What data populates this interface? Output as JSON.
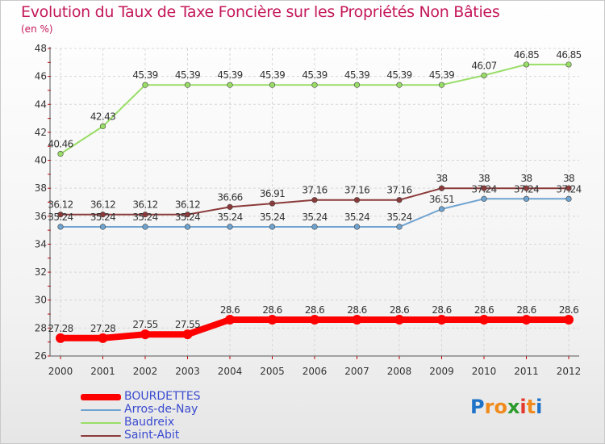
{
  "chart_data": {
    "type": "line",
    "title": "Evolution du Taux de Taxe Foncière sur les Propriétés Non Bâties",
    "unit_label": "(en %)",
    "x": [
      "2000",
      "2001",
      "2002",
      "2003",
      "2004",
      "2005",
      "2006",
      "2007",
      "2008",
      "2009",
      "2010",
      "2011",
      "2012"
    ],
    "ylim": [
      26,
      48
    ],
    "yticks": [
      "26",
      "28",
      "30",
      "32",
      "34",
      "36",
      "38",
      "40",
      "42",
      "44",
      "46",
      "48"
    ],
    "grid": true,
    "legend_position": "bottom-left",
    "series": [
      {
        "name": "BOURDETTES",
        "color": "#ff0000",
        "width": 8,
        "values": [
          27.28,
          27.28,
          27.55,
          27.55,
          28.6,
          28.6,
          28.6,
          28.6,
          28.6,
          28.6,
          28.6,
          28.6,
          28.6
        ],
        "labels": [
          "27.28",
          "27.28",
          "27.55",
          "27.55",
          "28.6",
          "28.6",
          "28.6",
          "28.6",
          "28.6",
          "28.6",
          "28.6",
          "28.6",
          "28.6"
        ]
      },
      {
        "name": "Arros-de-Nay",
        "color": "#6fa3d0",
        "width": 2,
        "values": [
          35.24,
          35.24,
          35.24,
          35.24,
          35.24,
          35.24,
          35.24,
          35.24,
          35.24,
          36.51,
          37.24,
          37.24,
          37.24
        ],
        "labels": [
          "35.24",
          "35.24",
          "35.24",
          "35.24",
          "35.24",
          "35.24",
          "35.24",
          "35.24",
          "35.24",
          "36.51",
          "37.24",
          "37.24",
          "37.24"
        ]
      },
      {
        "name": "Baudreix",
        "color": "#99dd66",
        "width": 2,
        "values": [
          40.46,
          42.43,
          45.39,
          45.39,
          45.39,
          45.39,
          45.39,
          45.39,
          45.39,
          45.39,
          46.07,
          46.85,
          46.85
        ],
        "labels": [
          "40.46",
          "42.43",
          "45.39",
          "45.39",
          "45.39",
          "45.39",
          "45.39",
          "45.39",
          "45.39",
          "45.39",
          "46.07",
          "46.85",
          "46.85"
        ]
      },
      {
        "name": "Saint-Abit",
        "color": "#8b3a3a",
        "width": 2,
        "values": [
          36.12,
          36.12,
          36.12,
          36.12,
          36.66,
          36.91,
          37.16,
          37.16,
          37.16,
          38,
          38,
          38,
          38
        ],
        "labels": [
          "36.12",
          "36.12",
          "36.12",
          "36.12",
          "36.66",
          "36.91",
          "37.16",
          "37.16",
          "37.16",
          "38",
          "38",
          "38",
          "38"
        ]
      }
    ]
  },
  "logo": {
    "letters": [
      "P",
      "r",
      "o",
      "x",
      "i",
      "t",
      "i"
    ],
    "colors": [
      "#1e73c8",
      "#f08a1c",
      "#f08a1c",
      "#2d9a2d",
      "#e23b2d",
      "#f08a1c",
      "#1e73c8"
    ]
  }
}
